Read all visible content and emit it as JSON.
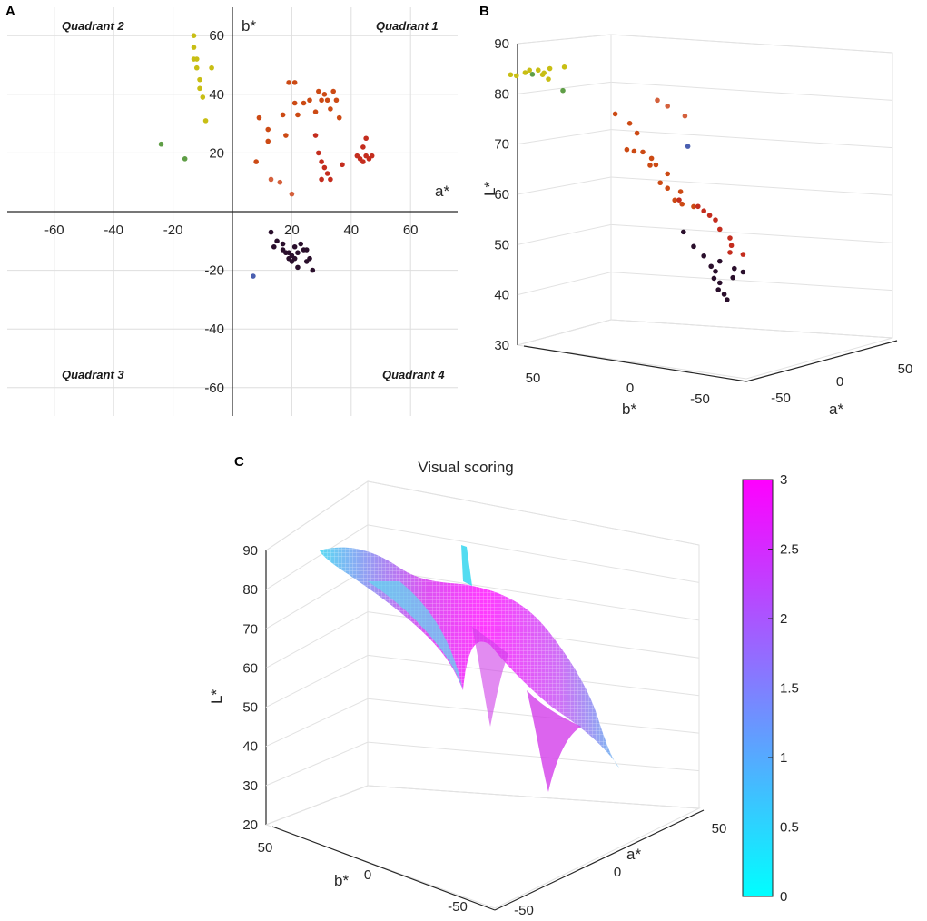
{
  "chart_data": [
    {
      "panel": "A",
      "type": "scatter",
      "xlabel": "a*",
      "ylabel": "b*",
      "xlim": [
        -70,
        70
      ],
      "ylim": [
        -70,
        70
      ],
      "xticks": [
        -60,
        -40,
        -20,
        20,
        40,
        60
      ],
      "yticks": [
        60,
        40,
        20,
        -20,
        -40,
        -60
      ],
      "grid": true,
      "quadrant_labels": [
        "Quadrant 1",
        "Quadrant 2",
        "Quadrant 3",
        "Quadrant 4"
      ],
      "series": [
        {
          "name": "yellow",
          "color": "#c8be14",
          "points": [
            [
              -13,
              60
            ],
            [
              -13,
              56
            ],
            [
              -13,
              52
            ],
            [
              -12,
              52
            ],
            [
              -12,
              49
            ],
            [
              -11,
              45
            ],
            [
              -11,
              42
            ],
            [
              -10,
              39
            ],
            [
              -9,
              31
            ],
            [
              -7,
              49
            ]
          ]
        },
        {
          "name": "green",
          "color": "#5f9e46",
          "points": [
            [
              -24,
              23
            ],
            [
              -16,
              18
            ]
          ]
        },
        {
          "name": "blue",
          "color": "#4a5fb0",
          "points": [
            [
              7,
              -22
            ]
          ]
        },
        {
          "name": "orange",
          "color": "#cc4a14",
          "points": [
            [
              9,
              32
            ],
            [
              12,
              28
            ],
            [
              12,
              24
            ],
            [
              17,
              33
            ],
            [
              19,
              44
            ],
            [
              21,
              44
            ],
            [
              21,
              37
            ],
            [
              22,
              33
            ],
            [
              24,
              37
            ],
            [
              26,
              38
            ],
            [
              28,
              34
            ],
            [
              29,
              41
            ],
            [
              30,
              38
            ],
            [
              31,
              40
            ],
            [
              32,
              38
            ],
            [
              33,
              35
            ],
            [
              34,
              41
            ],
            [
              35,
              38
            ],
            [
              36,
              32
            ],
            [
              8,
              17
            ],
            [
              18,
              26
            ]
          ]
        },
        {
          "name": "salmon",
          "color": "#d4603c",
          "points": [
            [
              13,
              11
            ],
            [
              16,
              10
            ],
            [
              20,
              6
            ]
          ]
        },
        {
          "name": "red",
          "color": "#c42d1e",
          "points": [
            [
              28,
              26
            ],
            [
              29,
              20
            ],
            [
              30,
              17
            ],
            [
              31,
              15
            ],
            [
              32,
              13
            ],
            [
              33,
              11
            ],
            [
              30,
              11
            ],
            [
              37,
              16
            ],
            [
              42,
              19
            ],
            [
              43,
              18
            ],
            [
              44,
              22
            ],
            [
              45,
              25
            ],
            [
              45,
              19
            ],
            [
              46,
              18
            ],
            [
              47,
              19
            ],
            [
              44,
              17
            ]
          ]
        },
        {
          "name": "dark purple",
          "color": "#2a0f2c",
          "points": [
            [
              13,
              -7
            ],
            [
              14,
              -12
            ],
            [
              15,
              -10
            ],
            [
              17,
              -13
            ],
            [
              18,
              -14
            ],
            [
              19,
              -14
            ],
            [
              19,
              -16
            ],
            [
              20,
              -15
            ],
            [
              20,
              -17
            ],
            [
              21,
              -12
            ],
            [
              22,
              -14
            ],
            [
              22,
              -19
            ],
            [
              23,
              -11
            ],
            [
              24,
              -13
            ],
            [
              25,
              -13
            ],
            [
              26,
              -16
            ],
            [
              27,
              -20
            ],
            [
              25,
              -17
            ],
            [
              21,
              -16
            ],
            [
              17,
              -11
            ]
          ]
        }
      ]
    },
    {
      "panel": "B",
      "type": "scatter",
      "subtype": "3d",
      "zlabel": "L*",
      "xlabel": "b*",
      "ylabel": "a*",
      "zlim": [
        30,
        90
      ],
      "zticks": [
        30,
        40,
        50,
        60,
        70,
        80,
        90
      ],
      "xticks": [
        50,
        0,
        -50
      ],
      "yticks": [
        -50,
        0,
        50
      ],
      "grid": true
    },
    {
      "panel": "C",
      "type": "surface",
      "subtype": "3d-mesh",
      "title": "Visual scoring",
      "zlabel": "L*",
      "xlabel": "b*",
      "ylabel": "a*",
      "zlim": [
        20,
        90
      ],
      "zticks": [
        20,
        30,
        40,
        50,
        60,
        70,
        80,
        90
      ],
      "xticks": [
        50,
        0,
        -50
      ],
      "yticks": [
        -50,
        0,
        50
      ],
      "colorbar": {
        "min": 0,
        "max": 3,
        "ticks": [
          0,
          0.5,
          1,
          1.5,
          2,
          2.5,
          3
        ],
        "colors": [
          "#00ffff",
          "#ff00ff"
        ]
      },
      "grid": true
    }
  ],
  "panel_labels": [
    "A",
    "B",
    "C"
  ],
  "texts": {
    "colorbar_ticks": [
      "3",
      "2.5",
      "2",
      "1.5",
      "1",
      "0.5",
      "0"
    ]
  }
}
